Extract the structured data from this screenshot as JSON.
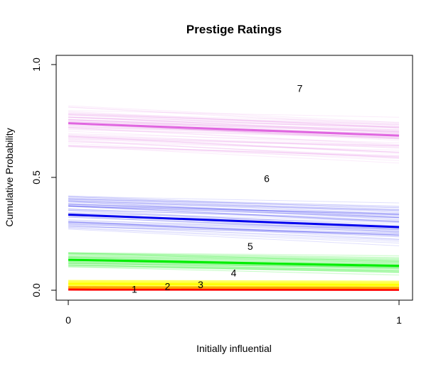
{
  "chart_data": {
    "type": "line",
    "title": "Prestige Ratings",
    "xlabel": "Initially influential",
    "ylabel": "Cumulative Probability",
    "xlim": [
      0,
      1
    ],
    "ylim": [
      0,
      1
    ],
    "x_ticks": [
      {
        "value": 0,
        "label": "0"
      },
      {
        "value": 1,
        "label": "1"
      }
    ],
    "y_ticks": [
      {
        "value": 0.0,
        "label": "0.0"
      },
      {
        "value": 0.5,
        "label": "0.5"
      },
      {
        "value": 1.0,
        "label": "1.0"
      }
    ],
    "grid": false,
    "series": [
      {
        "color": "#ff0000",
        "x": [
          0,
          1
        ],
        "values": [
          0.003,
          0.002
        ],
        "band": [
          0.002,
          0.012
        ],
        "label": "1"
      },
      {
        "color": "#ffa500",
        "x": [
          0,
          1
        ],
        "values": [
          0.012,
          0.01
        ],
        "band": [
          0.008,
          0.018
        ],
        "label": "2"
      },
      {
        "color": "#ffff00",
        "x": [
          0,
          1
        ],
        "values": [
          0.028,
          0.024
        ],
        "band": [
          0.018,
          0.045
        ],
        "label": "3"
      },
      {
        "color": "#00ee00",
        "x": [
          0,
          1
        ],
        "values": [
          0.135,
          0.108
        ],
        "band": [
          0.1,
          0.17
        ],
        "label": "4"
      },
      {
        "color": "#0000ee",
        "x": [
          0,
          1
        ],
        "values": [
          0.335,
          0.28
        ],
        "band": [
          0.27,
          0.42
        ],
        "label": "5"
      },
      {
        "color": "#e066e0",
        "x": [
          0,
          1
        ],
        "values": [
          0.74,
          0.685
        ],
        "band": [
          0.63,
          0.82
        ],
        "label": "6"
      },
      {
        "label": "7"
      }
    ],
    "category_labels": [
      {
        "text": "1",
        "x": 0.2,
        "y": 0.005
      },
      {
        "text": "2",
        "x": 0.3,
        "y": 0.018
      },
      {
        "text": "3",
        "x": 0.4,
        "y": 0.025
      },
      {
        "text": "4",
        "x": 0.5,
        "y": 0.077
      },
      {
        "text": "5",
        "x": 0.55,
        "y": 0.195
      },
      {
        "text": "6",
        "x": 0.6,
        "y": 0.495
      },
      {
        "text": "7",
        "x": 0.7,
        "y": 0.895
      }
    ]
  }
}
